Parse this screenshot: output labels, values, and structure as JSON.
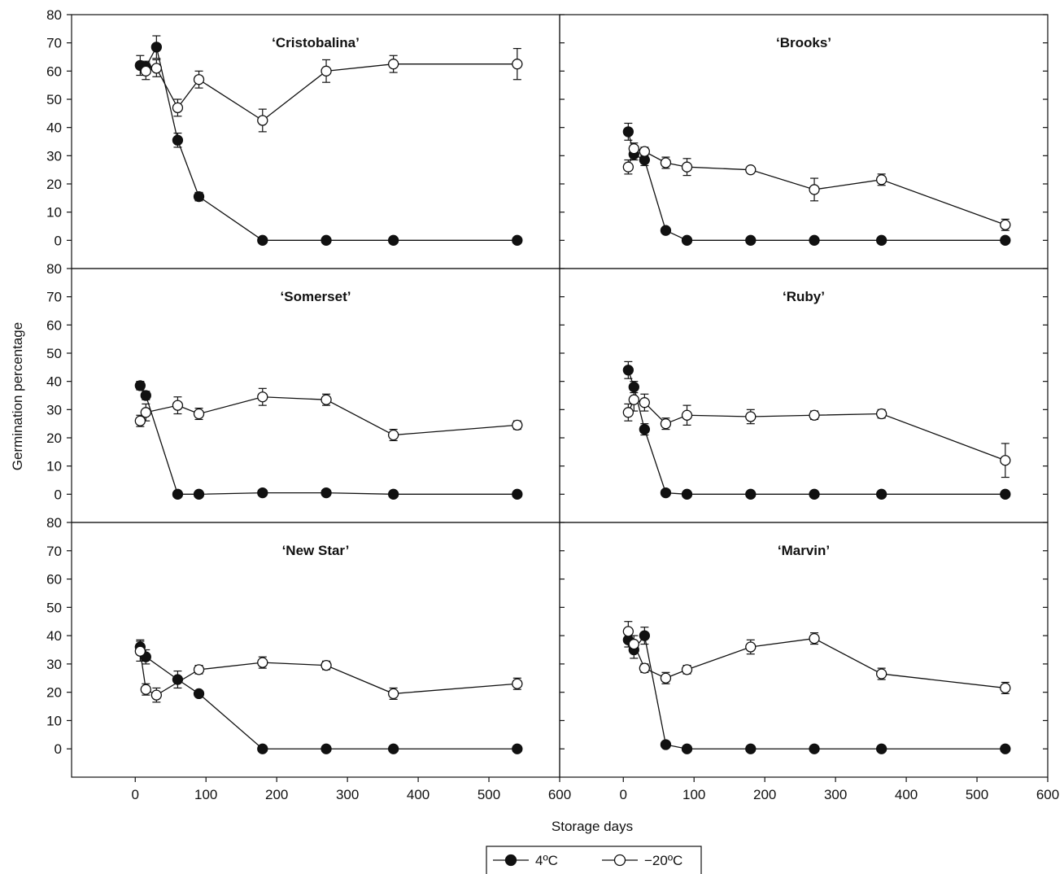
{
  "chart_data": {
    "type": "line",
    "xlabel": "Storage days",
    "ylabel": "Germination percentage",
    "xlim": [
      -90,
      600
    ],
    "ylim": [
      -10,
      80
    ],
    "x_ticks": [
      0,
      100,
      200,
      300,
      400,
      500,
      600
    ],
    "y_ticks": [
      0,
      10,
      20,
      30,
      40,
      50,
      60,
      70,
      80
    ],
    "legend": {
      "placement": "bottom-center",
      "entries": [
        {
          "label": "4ºC",
          "marker": "filled-circle"
        },
        {
          "label": "−20ºC",
          "marker": "open-circle"
        }
      ]
    },
    "colors": {
      "filled": "#111111",
      "open": "#ffffff",
      "line": "#111111"
    },
    "panels": [
      {
        "title": "‘Cristobalina’",
        "series": [
          {
            "label": "4ºC",
            "x": [
              7,
              15,
              30,
              60,
              90,
              180,
              270,
              365,
              540
            ],
            "y": [
              62,
              61.5,
              68.5,
              35.5,
              15.5,
              0,
              0,
              0,
              0
            ],
            "err": [
              3.5,
              2,
              4,
              2.5,
              1.5,
              0,
              0,
              0,
              0
            ]
          },
          {
            "label": "−20ºC",
            "x": [
              15,
              30,
              60,
              90,
              180,
              270,
              365,
              540
            ],
            "y": [
              60,
              61,
              47,
              57,
              42.5,
              60,
              62.5,
              62.5
            ],
            "err": [
              3,
              3,
              3,
              3,
              4,
              4,
              3,
              5.5
            ]
          }
        ]
      },
      {
        "title": "‘Brooks’",
        "series": [
          {
            "label": "4ºC",
            "x": [
              7,
              15,
              30,
              60,
              90,
              180,
              270,
              365,
              540
            ],
            "y": [
              38.5,
              30.5,
              28.5,
              3.5,
              0,
              0,
              0,
              0,
              0
            ],
            "err": [
              3,
              2,
              2,
              1,
              0,
              0,
              0,
              0,
              0
            ]
          },
          {
            "label": "−20ºC",
            "x": [
              7,
              15,
              30,
              60,
              90,
              180,
              270,
              365,
              540
            ],
            "y": [
              26,
              32.5,
              31.5,
              27.5,
              26,
              25,
              18,
              21.5,
              5.5
            ],
            "err": [
              2.5,
              2,
              1.5,
              2,
              3,
              1,
              4,
              2,
              2
            ]
          }
        ]
      },
      {
        "title": "‘Somerset’",
        "series": [
          {
            "label": "4ºC",
            "x": [
              7,
              15,
              60,
              90,
              180,
              270,
              365,
              540
            ],
            "y": [
              38.5,
              35,
              0,
              0,
              0.5,
              0.5,
              0,
              0
            ],
            "err": [
              1.5,
              1.5,
              0,
              0,
              0,
              0,
              0,
              0
            ]
          },
          {
            "label": "−20ºC",
            "x": [
              7,
              15,
              60,
              90,
              180,
              270,
              365,
              540
            ],
            "y": [
              26,
              29,
              31.5,
              28.5,
              34.5,
              33.5,
              21,
              24.5
            ],
            "err": [
              2,
              3,
              3,
              2,
              3,
              2,
              2,
              1.5
            ]
          }
        ]
      },
      {
        "title": "‘Ruby’",
        "series": [
          {
            "label": "4ºC",
            "x": [
              7,
              15,
              30,
              60,
              90,
              180,
              270,
              365,
              540
            ],
            "y": [
              44,
              38,
              23,
              0.5,
              0,
              0,
              0,
              0,
              0
            ],
            "err": [
              3,
              2,
              2,
              0,
              0,
              0,
              0,
              0,
              0
            ]
          },
          {
            "label": "−20ºC",
            "x": [
              7,
              15,
              30,
              60,
              90,
              180,
              270,
              365,
              540
            ],
            "y": [
              29,
              33.5,
              32.5,
              25,
              28,
              27.5,
              28,
              28.5,
              12
            ],
            "err": [
              3,
              4,
              3,
              2,
              3.5,
              2.5,
              1.5,
              1.5,
              6
            ]
          }
        ]
      },
      {
        "title": "‘New Star’",
        "series": [
          {
            "label": "4ºC",
            "x": [
              7,
              15,
              60,
              90,
              180,
              270,
              365,
              540
            ],
            "y": [
              36,
              32.5,
              24.5,
              19.5,
              0,
              0,
              0,
              0
            ],
            "err": [
              2.5,
              2.5,
              3,
              1,
              0,
              0,
              0,
              0
            ]
          },
          {
            "label": "−20ºC",
            "x": [
              7,
              15,
              30,
              90,
              180,
              270,
              365,
              540
            ],
            "y": [
              34.5,
              21,
              19,
              28,
              30.5,
              29.5,
              19.5,
              23
            ],
            "err": [
              3.5,
              2,
              2.5,
              1.5,
              2,
              1.5,
              2,
              2
            ]
          }
        ]
      },
      {
        "title": "‘Marvin’",
        "series": [
          {
            "label": "4ºC",
            "x": [
              7,
              15,
              30,
              60,
              90,
              180,
              270,
              365,
              540
            ],
            "y": [
              38.5,
              35,
              40,
              1.5,
              0,
              0,
              0,
              0,
              0
            ],
            "err": [
              2.5,
              3,
              3,
              0,
              0,
              0,
              0,
              0,
              0
            ]
          },
          {
            "label": "−20ºC",
            "x": [
              7,
              15,
              30,
              60,
              90,
              180,
              270,
              365,
              540
            ],
            "y": [
              41.5,
              37,
              28.5,
              25,
              28,
              36,
              39,
              26.5,
              21.5
            ],
            "err": [
              3.5,
              3,
              1.5,
              2,
              1.5,
              2.5,
              2,
              2,
              2
            ]
          }
        ]
      }
    ]
  }
}
